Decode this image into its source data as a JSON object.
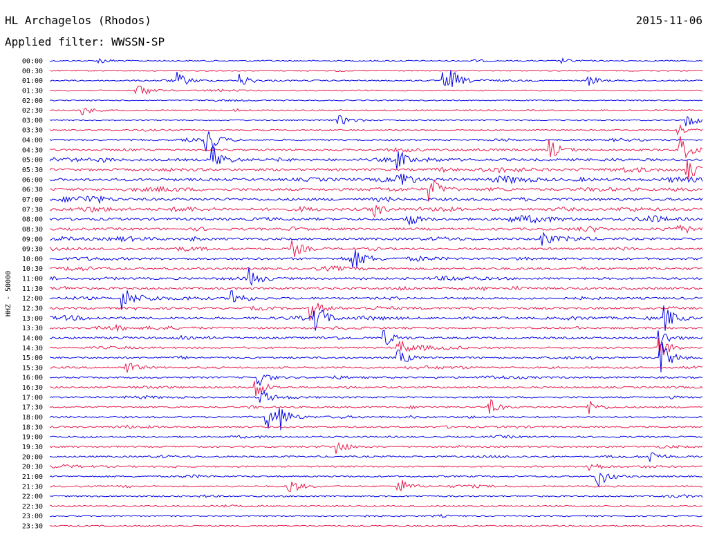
{
  "header": {
    "station": "HL Archagelos (Rhodos)",
    "date": "2015-11-06",
    "filter_text": "Applied filter: WWSSN-SP"
  },
  "chart_data": {
    "type": "line",
    "title": "HL Archagelos (Rhodos)",
    "subtitle": "Applied filter: WWSSN-SP",
    "date": "2015-11-06",
    "ylabel": "HHZ - 50000",
    "xlabel": "",
    "grid": false,
    "legend": "none",
    "colors": {
      "even_line": "#0000e6",
      "odd_line": "#e6194b"
    },
    "row_labels": [
      "00:00",
      "00:30",
      "01:00",
      "01:30",
      "02:00",
      "02:30",
      "03:00",
      "03:30",
      "04:00",
      "04:30",
      "05:00",
      "05:30",
      "06:00",
      "06:30",
      "07:00",
      "07:30",
      "08:00",
      "08:30",
      "09:00",
      "09:30",
      "10:00",
      "10:30",
      "11:00",
      "11:30",
      "12:00",
      "12:30",
      "13:00",
      "13:30",
      "14:00",
      "14:30",
      "15:00",
      "15:30",
      "16:00",
      "16:30",
      "17:00",
      "17:30",
      "18:00",
      "18:30",
      "19:00",
      "19:30",
      "20:00",
      "20:30",
      "21:00",
      "21:30",
      "22:00",
      "22:30",
      "23:00",
      "23:30"
    ],
    "activity_level": [
      0.1,
      0.08,
      0.12,
      0.08,
      0.06,
      0.1,
      0.08,
      0.1,
      0.2,
      0.25,
      0.35,
      0.35,
      0.4,
      0.4,
      0.4,
      0.4,
      0.38,
      0.35,
      0.33,
      0.32,
      0.32,
      0.3,
      0.3,
      0.3,
      0.3,
      0.3,
      0.32,
      0.28,
      0.25,
      0.22,
      0.22,
      0.22,
      0.2,
      0.2,
      0.18,
      0.18,
      0.2,
      0.18,
      0.18,
      0.18,
      0.18,
      0.18,
      0.16,
      0.16,
      0.14,
      0.14,
      0.12,
      0.1
    ],
    "events": [
      {
        "row": 0,
        "minute": 2.2,
        "amp": 0.45
      },
      {
        "row": 0,
        "minute": 23.5,
        "amp": 0.3
      },
      {
        "row": 2,
        "minute": 5.9,
        "amp": 0.9
      },
      {
        "row": 2,
        "minute": 8.8,
        "amp": 0.8
      },
      {
        "row": 2,
        "minute": 18.1,
        "amp": 1.0
      },
      {
        "row": 2,
        "minute": 18.5,
        "amp": 0.9
      },
      {
        "row": 2,
        "minute": 24.8,
        "amp": 0.6
      },
      {
        "row": 3,
        "minute": 4.0,
        "amp": 1.2
      },
      {
        "row": 5,
        "minute": 1.5,
        "amp": 0.6
      },
      {
        "row": 6,
        "minute": 13.3,
        "amp": 0.7
      },
      {
        "row": 6,
        "minute": 29.3,
        "amp": 1.0
      },
      {
        "row": 7,
        "minute": 28.9,
        "amp": 0.8
      },
      {
        "row": 8,
        "minute": 7.2,
        "amp": 2.2
      },
      {
        "row": 9,
        "minute": 23.0,
        "amp": 1.3
      },
      {
        "row": 9,
        "minute": 29.0,
        "amp": 1.6
      },
      {
        "row": 10,
        "minute": 7.5,
        "amp": 1.8
      },
      {
        "row": 10,
        "minute": 16.0,
        "amp": 1.2
      },
      {
        "row": 11,
        "minute": 29.3,
        "amp": 1.4
      },
      {
        "row": 12,
        "minute": 16.0,
        "amp": 1.6
      },
      {
        "row": 13,
        "minute": 17.5,
        "amp": 1.5
      },
      {
        "row": 15,
        "minute": 14.8,
        "amp": 1.2
      },
      {
        "row": 16,
        "minute": 16.4,
        "amp": 1.0
      },
      {
        "row": 18,
        "minute": 22.6,
        "amp": 1.1
      },
      {
        "row": 19,
        "minute": 11.2,
        "amp": 1.0
      },
      {
        "row": 20,
        "minute": 14.0,
        "amp": 1.1
      },
      {
        "row": 22,
        "minute": 9.2,
        "amp": 1.2
      },
      {
        "row": 24,
        "minute": 3.4,
        "amp": 1.4
      },
      {
        "row": 24,
        "minute": 8.4,
        "amp": 1.3
      },
      {
        "row": 25,
        "minute": 12.0,
        "amp": 1.4
      },
      {
        "row": 26,
        "minute": 12.2,
        "amp": 2.0
      },
      {
        "row": 26,
        "minute": 28.3,
        "amp": 1.5
      },
      {
        "row": 28,
        "minute": 15.3,
        "amp": 1.2
      },
      {
        "row": 28,
        "minute": 28.0,
        "amp": 1.4
      },
      {
        "row": 29,
        "minute": 16.0,
        "amp": 1.3
      },
      {
        "row": 29,
        "minute": 28.0,
        "amp": 1.6
      },
      {
        "row": 30,
        "minute": 28.1,
        "amp": 2.2
      },
      {
        "row": 30,
        "minute": 16.0,
        "amp": 1.2
      },
      {
        "row": 31,
        "minute": 3.5,
        "amp": 1.0
      },
      {
        "row": 32,
        "minute": 9.6,
        "amp": 1.0
      },
      {
        "row": 33,
        "minute": 9.5,
        "amp": 1.3
      },
      {
        "row": 34,
        "minute": 9.7,
        "amp": 1.1
      },
      {
        "row": 35,
        "minute": 20.2,
        "amp": 1.0
      },
      {
        "row": 35,
        "minute": 24.8,
        "amp": 0.9
      },
      {
        "row": 36,
        "minute": 10.0,
        "amp": 1.5
      },
      {
        "row": 36,
        "minute": 10.6,
        "amp": 1.3
      },
      {
        "row": 39,
        "minute": 13.2,
        "amp": 1.0
      },
      {
        "row": 40,
        "minute": 27.6,
        "amp": 0.9
      },
      {
        "row": 41,
        "minute": 24.7,
        "amp": 1.0
      },
      {
        "row": 42,
        "minute": 25.2,
        "amp": 1.4
      },
      {
        "row": 43,
        "minute": 11.0,
        "amp": 1.1
      },
      {
        "row": 43,
        "minute": 16.0,
        "amp": 1.2
      }
    ]
  }
}
